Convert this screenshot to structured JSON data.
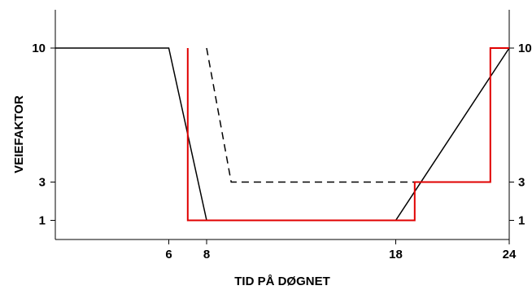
{
  "chart_data": {
    "type": "line",
    "xlabel": "TID PÅ DØGNET",
    "ylabel": "VEIEFAKTOR",
    "xlim": [
      0,
      24
    ],
    "ylim": [
      0,
      12
    ],
    "x_ticks": [
      6,
      8,
      18,
      24
    ],
    "y_ticks": [
      1,
      3,
      10
    ],
    "grid": false,
    "series": [
      {
        "color": "#000000",
        "style": "solid",
        "points": [
          [
            0,
            10
          ],
          [
            6,
            10
          ],
          [
            8,
            1
          ],
          [
            18,
            1
          ],
          [
            24,
            10
          ]
        ]
      },
      {
        "color": "#000000",
        "style": "dashed",
        "points": [
          [
            8,
            10
          ],
          [
            9.3,
            3
          ],
          [
            19,
            3
          ]
        ]
      },
      {
        "color": "#e00000",
        "style": "solid",
        "points": [
          [
            7,
            10
          ],
          [
            7,
            1
          ],
          [
            19,
            1
          ],
          [
            19,
            3
          ],
          [
            23,
            3
          ],
          [
            23,
            10
          ],
          [
            24,
            10
          ]
        ]
      }
    ]
  }
}
